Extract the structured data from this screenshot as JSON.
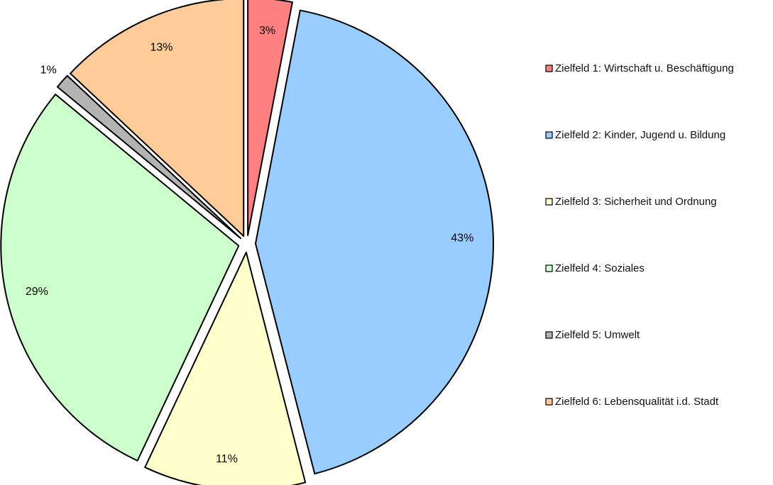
{
  "chart_data": {
    "type": "pie",
    "exploded": true,
    "start": "top, clockwise",
    "legend_position": "right",
    "title": "",
    "slices": [
      {
        "label": "Zielfeld 1: Wirtschaft u. Beschäftigung",
        "value": 3,
        "value_label": "3%",
        "color": "#ff8080"
      },
      {
        "label": "Zielfeld 2: Kinder, Jugend u. Bildung",
        "value": 43,
        "value_label": "43%",
        "color": "#99ccff"
      },
      {
        "label": "Zielfeld 3: Sicherheit und Ordnung",
        "value": 11,
        "value_label": "11%",
        "color": "#ffffcc"
      },
      {
        "label": "Zielfeld 4: Soziales",
        "value": 29,
        "value_label": "29%",
        "color": "#ccffcc"
      },
      {
        "label": "Zielfeld 5: Umwelt",
        "value": 1,
        "value_label": "1%",
        "color": "#b3b3b3"
      },
      {
        "label": "Zielfeld 6: Lebensqualität i.d. Stadt",
        "value": 13,
        "value_label": "13%",
        "color": "#ffcc99"
      }
    ]
  }
}
